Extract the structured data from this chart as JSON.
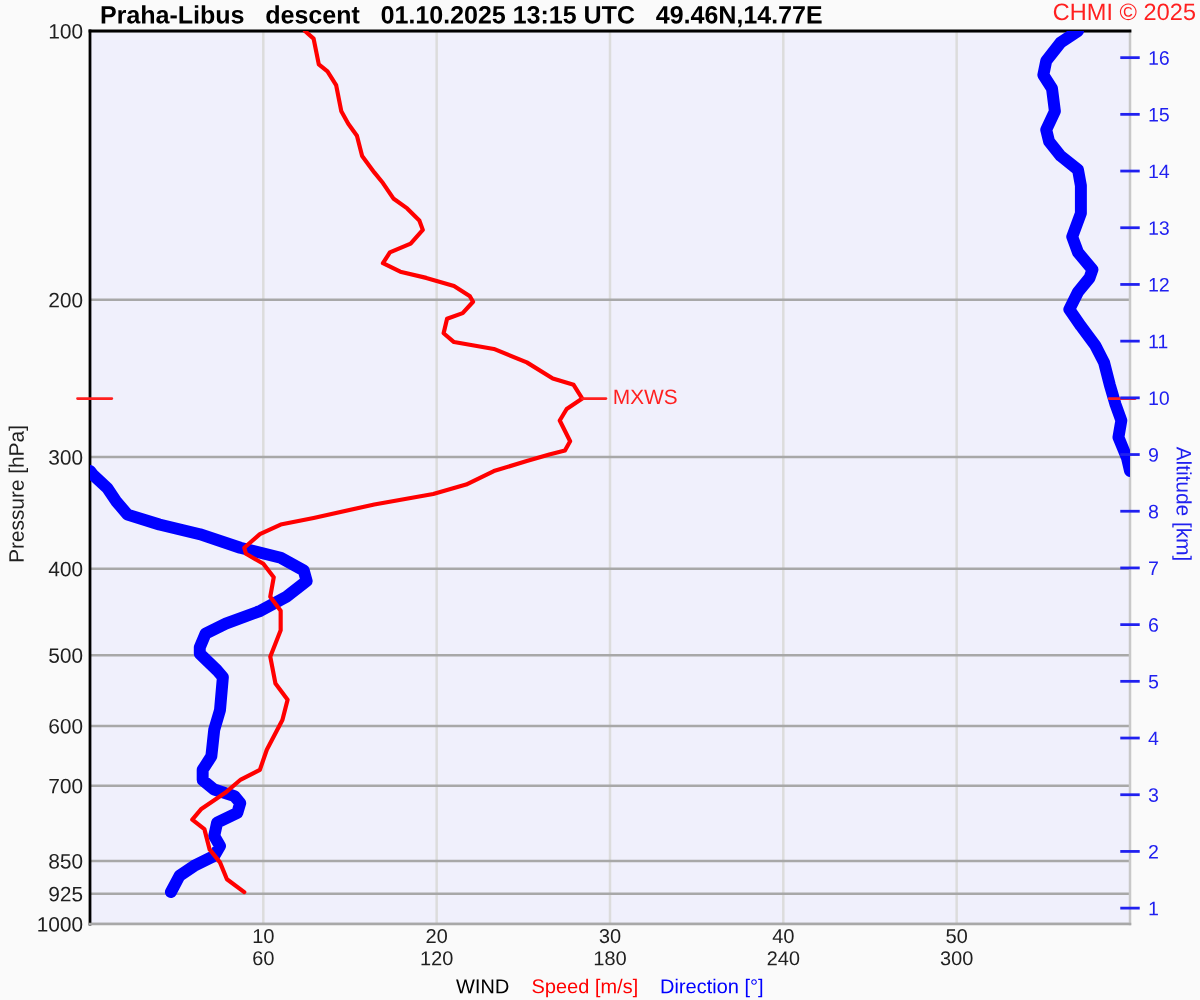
{
  "chart_data": {
    "type": "line",
    "title": "Praha-Libus   descent   01.10.2025 13:15 UTC   49.46N,14.77E",
    "xlabel": "WIND",
    "ylabel": "Pressure [hPa]",
    "y2label": "Altitude [km]",
    "annotations": [
      "CHMI © 2025",
      {
        "text": "MXWS",
        "x": 28.4,
        "y": 258
      }
    ],
    "series": [
      {
        "name": "Speed [m/s]",
        "color": "#ff0000",
        "x": [
          12.4,
          12.9,
          13.2,
          13.7,
          14.2,
          14.5,
          14.9,
          15.4,
          15.7,
          16.4,
          16.9,
          17.5,
          18.3,
          19.0,
          19.2,
          18.5,
          17.3,
          16.9,
          17.9,
          19.4,
          21.0,
          21.9,
          22.1,
          21.5,
          20.6,
          20.4,
          21.0,
          23.3,
          25.2,
          26.7,
          27.9,
          28.4,
          27.5,
          27.1,
          27.7,
          27.4,
          26.5,
          25.2,
          23.3,
          21.7,
          19.8,
          16.4,
          12.9,
          11.0,
          9.8,
          8.9,
          9.0,
          10.0,
          10.6,
          10.4,
          11.0,
          11.0,
          10.4,
          10.7,
          11.4,
          11.1,
          10.2,
          9.8,
          8.7,
          7.8,
          6.4,
          5.9,
          6.6,
          6.9,
          7.5,
          7.9,
          8.9
        ],
        "values": [
          100,
          102,
          109,
          111,
          115,
          123,
          127,
          131,
          138,
          144,
          148,
          154,
          158,
          163,
          167,
          173,
          177,
          182,
          186,
          189,
          193,
          198,
          201,
          207,
          210,
          218,
          223,
          227,
          235,
          245,
          249,
          258,
          265,
          273,
          288,
          295,
          298,
          303,
          311,
          322,
          330,
          339,
          351,
          357,
          366,
          379,
          385,
          395,
          409,
          430,
          446,
          469,
          502,
          538,
          561,
          591,
          638,
          672,
          689,
          713,
          744,
          764,
          783,
          825,
          853,
          891,
          921
        ]
      },
      {
        "name": "Direction [°]",
        "color": "#0000ff",
        "axis": "x2",
        "x": [
          342,
          336,
          331,
          330,
          333,
          334,
          331,
          332,
          336,
          342,
          343,
          343,
          340,
          342,
          347,
          346,
          342,
          339,
          343,
          348,
          351,
          353,
          355,
          357,
          356,
          359,
          360,
          null,
          0,
          1,
          6,
          9,
          13,
          24,
          38,
          52,
          66,
          74,
          75,
          68,
          59,
          47,
          40,
          38,
          38,
          44,
          46,
          45,
          43,
          42,
          39,
          39,
          43,
          50,
          52,
          51,
          44,
          43,
          45,
          43,
          36,
          31,
          28
        ],
        "values": [
          100,
          103,
          108,
          112,
          116,
          123,
          129,
          133,
          138,
          143,
          149,
          160,
          170,
          177,
          185,
          189,
          196,
          205,
          214,
          225,
          235,
          249,
          262,
          273,
          285,
          301,
          311,
          null,
          311,
          314,
          325,
          336,
          348,
          357,
          366,
          379,
          389,
          402,
          413,
          430,
          446,
          461,
          473,
          490,
          498,
          520,
          529,
          576,
          606,
          649,
          672,
          690,
          707,
          719,
          732,
          751,
          770,
          797,
          818,
          839,
          861,
          883,
          921
        ]
      }
    ],
    "xlim": [
      0,
      60
    ],
    "xticks": [
      10,
      20,
      30,
      40,
      50
    ],
    "x2lim": [
      0,
      360
    ],
    "x2ticks": [
      60,
      120,
      180,
      240,
      300
    ],
    "ylim": [
      1000,
      100
    ],
    "yticks": [
      100,
      200,
      300,
      400,
      500,
      600,
      700,
      850,
      925,
      1000
    ],
    "y2lim": [
      0.72,
      16.47
    ],
    "y2ticks": [
      1,
      2,
      3,
      4,
      5,
      6,
      7,
      8,
      9,
      10,
      11,
      12,
      13,
      14,
      15,
      16
    ],
    "log": true,
    "grid": true,
    "legend": "bottom",
    "line_style": "solid"
  }
}
